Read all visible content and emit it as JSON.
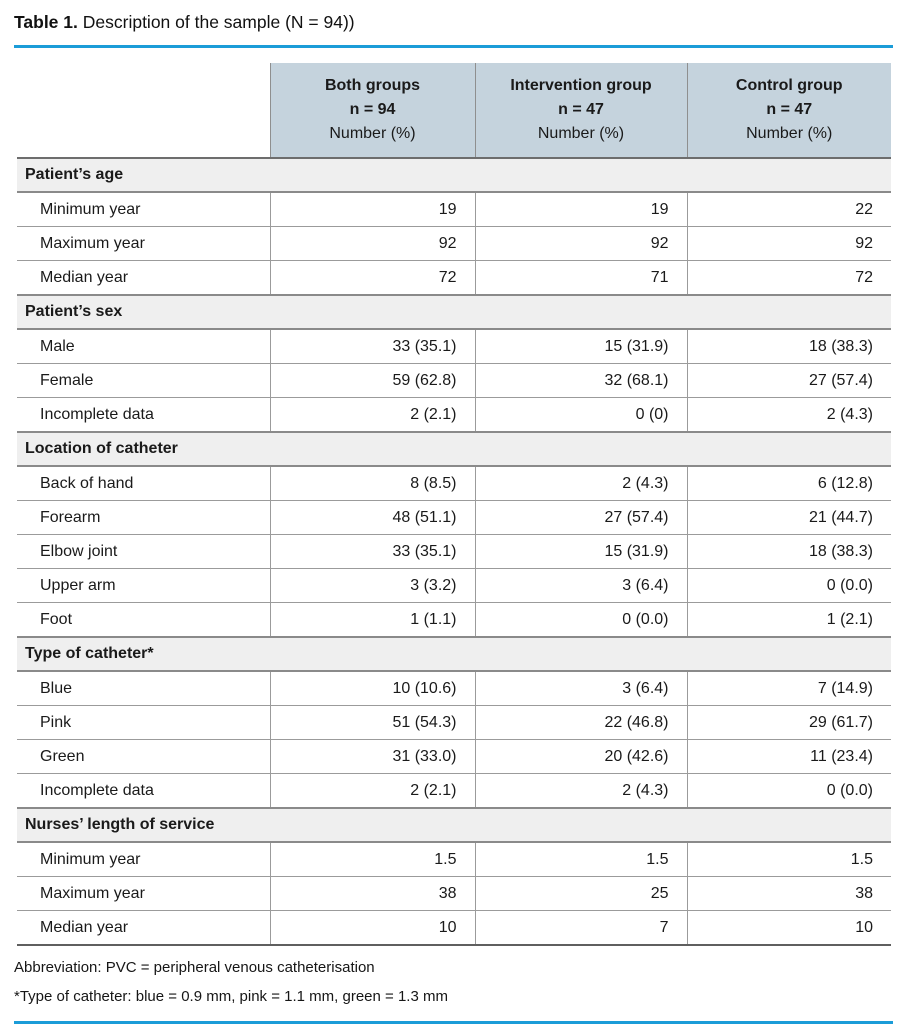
{
  "title": {
    "label": "Table 1.",
    "text": "Description of the sample (N = 94))"
  },
  "colors": {
    "accent_blue": "#1b9cd8",
    "column_header_bg": "#c5d3dd",
    "section_header_bg": "#efefef"
  },
  "table": {
    "columns": [
      {
        "line1": "Both groups",
        "line2": "n = 94",
        "line3": "Number (%)"
      },
      {
        "line1": "Intervention group",
        "line2": "n = 47",
        "line3": "Number (%)"
      },
      {
        "line1": "Control group",
        "line2": "n = 47",
        "line3": "Number (%)"
      }
    ],
    "sections": [
      {
        "header": "Patient’s age",
        "rows": [
          {
            "label": "Minimum year",
            "values": [
              "19",
              "19",
              "22"
            ]
          },
          {
            "label": "Maximum year",
            "values": [
              "92",
              "92",
              "92"
            ]
          },
          {
            "label": "Median year",
            "values": [
              "72",
              "71",
              "72"
            ]
          }
        ]
      },
      {
        "header": "Patient’s sex",
        "rows": [
          {
            "label": "Male",
            "values": [
              "33 (35.1)",
              "15 (31.9)",
              "18 (38.3)"
            ]
          },
          {
            "label": "Female",
            "values": [
              "59 (62.8)",
              "32 (68.1)",
              "27 (57.4)"
            ]
          },
          {
            "label": "Incomplete data",
            "values": [
              "2 (2.1)",
              "0 (0)",
              "2 (4.3)"
            ]
          }
        ]
      },
      {
        "header": "Location of catheter",
        "rows": [
          {
            "label": "Back of hand",
            "values": [
              "8 (8.5)",
              "2 (4.3)",
              "6 (12.8)"
            ]
          },
          {
            "label": "Forearm",
            "values": [
              "48 (51.1)",
              "27 (57.4)",
              "21 (44.7)"
            ]
          },
          {
            "label": "Elbow joint",
            "values": [
              "33 (35.1)",
              "15 (31.9)",
              "18 (38.3)"
            ]
          },
          {
            "label": "Upper arm",
            "values": [
              "3 (3.2)",
              "3 (6.4)",
              "0 (0.0)"
            ]
          },
          {
            "label": "Foot",
            "values": [
              "1 (1.1)",
              "0 (0.0)",
              "1 (2.1)"
            ]
          }
        ]
      },
      {
        "header": "Type of catheter*",
        "rows": [
          {
            "label": "Blue",
            "values": [
              "10 (10.6)",
              "3 (6.4)",
              "7 (14.9)"
            ]
          },
          {
            "label": "Pink",
            "values": [
              "51 (54.3)",
              "22 (46.8)",
              "29 (61.7)"
            ]
          },
          {
            "label": "Green",
            "values": [
              "31 (33.0)",
              "20 (42.6)",
              "11 (23.4)"
            ]
          },
          {
            "label": "Incomplete data",
            "values": [
              "2 (2.1)",
              "2 (4.3)",
              "0 (0.0)"
            ]
          }
        ]
      },
      {
        "header": "Nurses’ length of service",
        "rows": [
          {
            "label": "Minimum year",
            "values": [
              "1.5",
              "1.5",
              "1.5"
            ]
          },
          {
            "label": "Maximum year",
            "values": [
              "38",
              "25",
              "38"
            ]
          },
          {
            "label": "Median year",
            "values": [
              "10",
              "7",
              "10"
            ]
          }
        ]
      }
    ]
  },
  "footnotes": [
    "Abbreviation: PVC = peripheral venous catheterisation",
    "*Type of catheter: blue = 0.9 mm, pink = 1.1 mm, green = 1.3 mm"
  ]
}
